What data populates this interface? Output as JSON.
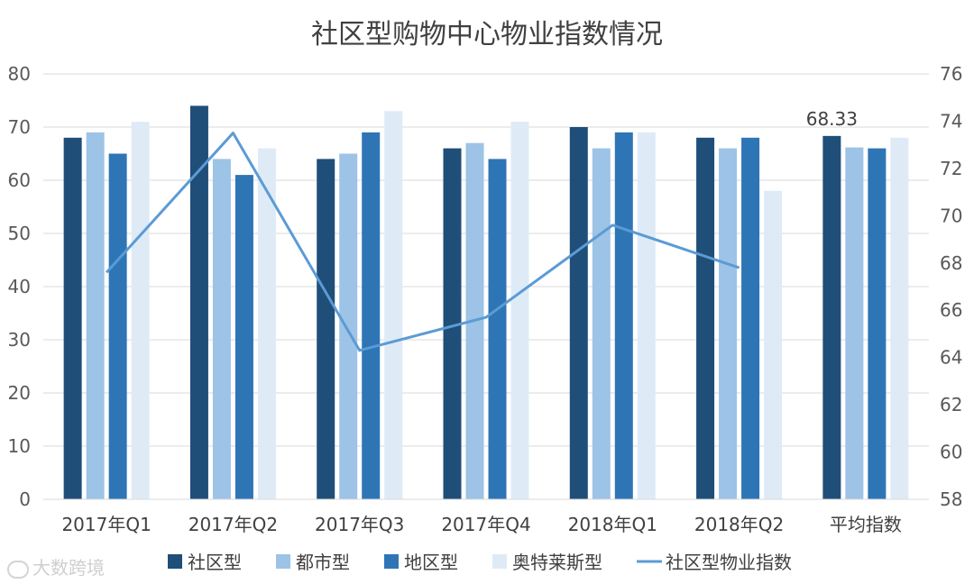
{
  "chart_data": {
    "type": "bar",
    "title": "社区型购物中心物业指数情况",
    "categories": [
      "2017年Q1",
      "2017年Q2",
      "2017年Q3",
      "2017年Q4",
      "2018年Q1",
      "2018年Q2",
      "平均指数"
    ],
    "series": [
      {
        "name": "社区型",
        "type": "bar",
        "axis": "left",
        "color": "#1f4e79",
        "values": [
          68,
          74,
          64,
          66,
          70,
          68,
          68.33
        ]
      },
      {
        "name": "都市型",
        "type": "bar",
        "axis": "left",
        "color": "#9dc3e6",
        "values": [
          69,
          64,
          65,
          67,
          66,
          66,
          66.17
        ]
      },
      {
        "name": "地区型",
        "type": "bar",
        "axis": "left",
        "color": "#2e75b6",
        "values": [
          65,
          61,
          69,
          64,
          69,
          68,
          66
        ]
      },
      {
        "name": "奥特莱斯型",
        "type": "bar",
        "axis": "left",
        "color": "#deebf7",
        "values": [
          71,
          66,
          73,
          71,
          69,
          58,
          68
        ]
      },
      {
        "name": "社区型物业指数",
        "type": "line",
        "axis": "right",
        "color": "#5b9bd5",
        "values": [
          67.6,
          73.5,
          64.3,
          65.7,
          69.6,
          67.8,
          null
        ]
      }
    ],
    "data_labels": [
      {
        "category": "平均指数",
        "series": "社区型",
        "text": "68.33"
      }
    ],
    "yleft": {
      "min": 0,
      "max": 80,
      "ticks": [
        0,
        10,
        20,
        30,
        40,
        50,
        60,
        70,
        80
      ]
    },
    "yright": {
      "min": 58,
      "max": 76,
      "ticks": [
        58,
        60,
        62,
        64,
        66,
        68,
        70,
        72,
        74,
        76
      ]
    },
    "grid": true,
    "legend_position": "bottom"
  },
  "watermark": {
    "text": "大数跨境"
  }
}
